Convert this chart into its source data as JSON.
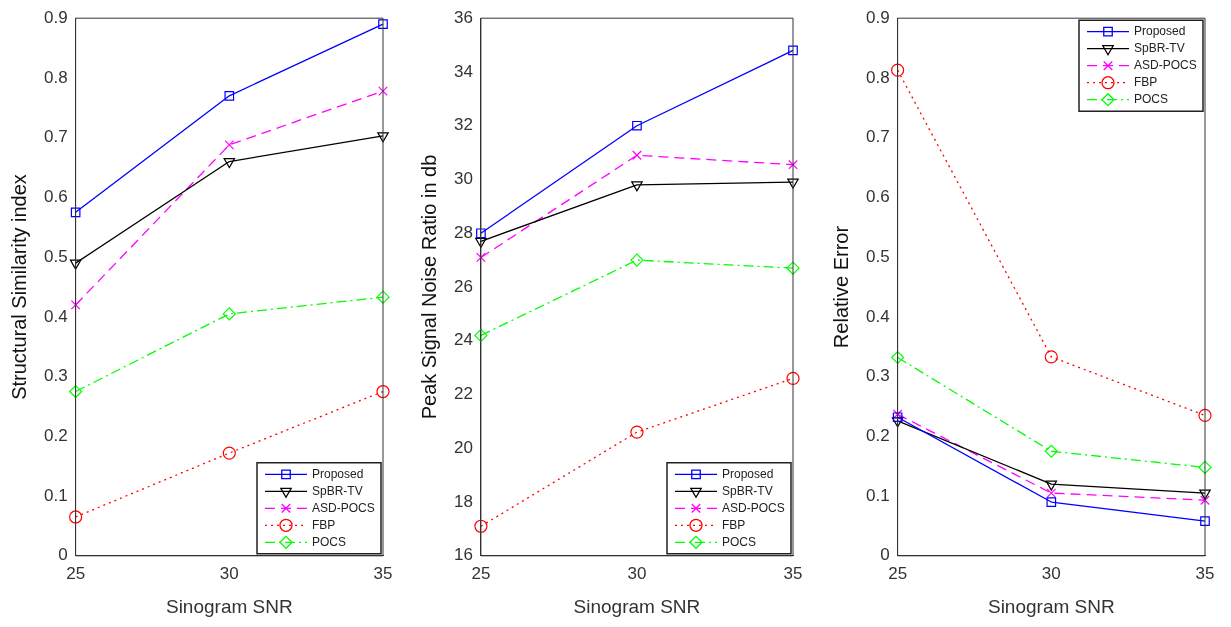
{
  "chart_data": [
    {
      "type": "line",
      "xlabel": "Sinogram SNR",
      "ylabel": "Structural Similarity index",
      "x": [
        25,
        30,
        35
      ],
      "xlim": [
        25,
        35
      ],
      "xticks": [
        25,
        30,
        35
      ],
      "ylim": [
        0,
        0.9
      ],
      "yticks": [
        0,
        0.1,
        0.2,
        0.3,
        0.4,
        0.5,
        0.6,
        0.7,
        0.8,
        0.9
      ],
      "grid": false,
      "legend": "bottom right",
      "series": [
        {
          "name": "Proposed",
          "color": "#0000ff",
          "marker": "square",
          "line_style": "solid",
          "values": [
            0.575,
            0.77,
            0.89
          ]
        },
        {
          "name": "SpBR-TV",
          "color": "#000000",
          "marker": "triangle",
          "line_style": "solid",
          "values": [
            0.49,
            0.66,
            0.703
          ]
        },
        {
          "name": "ASD-POCS",
          "color": "#ff00ff",
          "marker": "cross",
          "line_style": "dashed",
          "values": [
            0.42,
            0.688,
            0.778
          ]
        },
        {
          "name": "FBP",
          "color": "#ff0000",
          "marker": "circle",
          "line_style": "dotted",
          "values": [
            0.065,
            0.172,
            0.275
          ]
        },
        {
          "name": "POCS",
          "color": "#00ff00",
          "marker": "diamond",
          "line_style": "dashdot",
          "values": [
            0.275,
            0.405,
            0.433
          ]
        }
      ]
    },
    {
      "type": "line",
      "xlabel": "Sinogram SNR",
      "ylabel": "Peak Signal Noise Ratio in db",
      "x": [
        25,
        30,
        35
      ],
      "xlim": [
        25,
        35
      ],
      "xticks": [
        25,
        30,
        35
      ],
      "ylim": [
        16,
        36
      ],
      "yticks": [
        16,
        18,
        20,
        22,
        24,
        26,
        28,
        30,
        32,
        34,
        36
      ],
      "grid": false,
      "legend": "bottom right",
      "series": [
        {
          "name": "Proposed",
          "color": "#0000ff",
          "marker": "square",
          "line_style": "solid",
          "values": [
            28,
            32,
            34.8
          ]
        },
        {
          "name": "SpBR-TV",
          "color": "#000000",
          "marker": "triangle",
          "line_style": "solid",
          "values": [
            27.7,
            29.8,
            29.9
          ]
        },
        {
          "name": "ASD-POCS",
          "color": "#ff00ff",
          "marker": "cross",
          "line_style": "dashed",
          "values": [
            27.1,
            30.9,
            30.55
          ]
        },
        {
          "name": "FBP",
          "color": "#ff0000",
          "marker": "circle",
          "line_style": "dotted",
          "values": [
            17.1,
            20.6,
            22.6
          ]
        },
        {
          "name": "POCS",
          "color": "#00ff00",
          "marker": "diamond",
          "line_style": "dashdot",
          "values": [
            24.2,
            27,
            26.7
          ]
        }
      ]
    },
    {
      "type": "line",
      "xlabel": "Sinogram SNR",
      "ylabel": "Relative Error",
      "x": [
        25,
        30,
        35
      ],
      "xlim": [
        25,
        35
      ],
      "xticks": [
        25,
        30,
        35
      ],
      "ylim": [
        0,
        0.9
      ],
      "yticks": [
        0,
        0.1,
        0.2,
        0.3,
        0.4,
        0.5,
        0.6,
        0.7,
        0.8,
        0.9
      ],
      "grid": false,
      "legend": "top right",
      "series": [
        {
          "name": "Proposed",
          "color": "#0000ff",
          "marker": "square",
          "line_style": "solid",
          "values": [
            0.232,
            0.09,
            0.058
          ]
        },
        {
          "name": "SpBR-TV",
          "color": "#000000",
          "marker": "triangle",
          "line_style": "solid",
          "values": [
            0.226,
            0.12,
            0.105
          ]
        },
        {
          "name": "ASD-POCS",
          "color": "#ff00ff",
          "marker": "cross",
          "line_style": "dashed",
          "values": [
            0.237,
            0.105,
            0.093
          ]
        },
        {
          "name": "FBP",
          "color": "#ff0000",
          "marker": "circle",
          "line_style": "dotted",
          "values": [
            0.813,
            0.333,
            0.235
          ]
        },
        {
          "name": "POCS",
          "color": "#00ff00",
          "marker": "diamond",
          "line_style": "dashdot",
          "values": [
            0.332,
            0.175,
            0.148
          ]
        }
      ]
    }
  ]
}
